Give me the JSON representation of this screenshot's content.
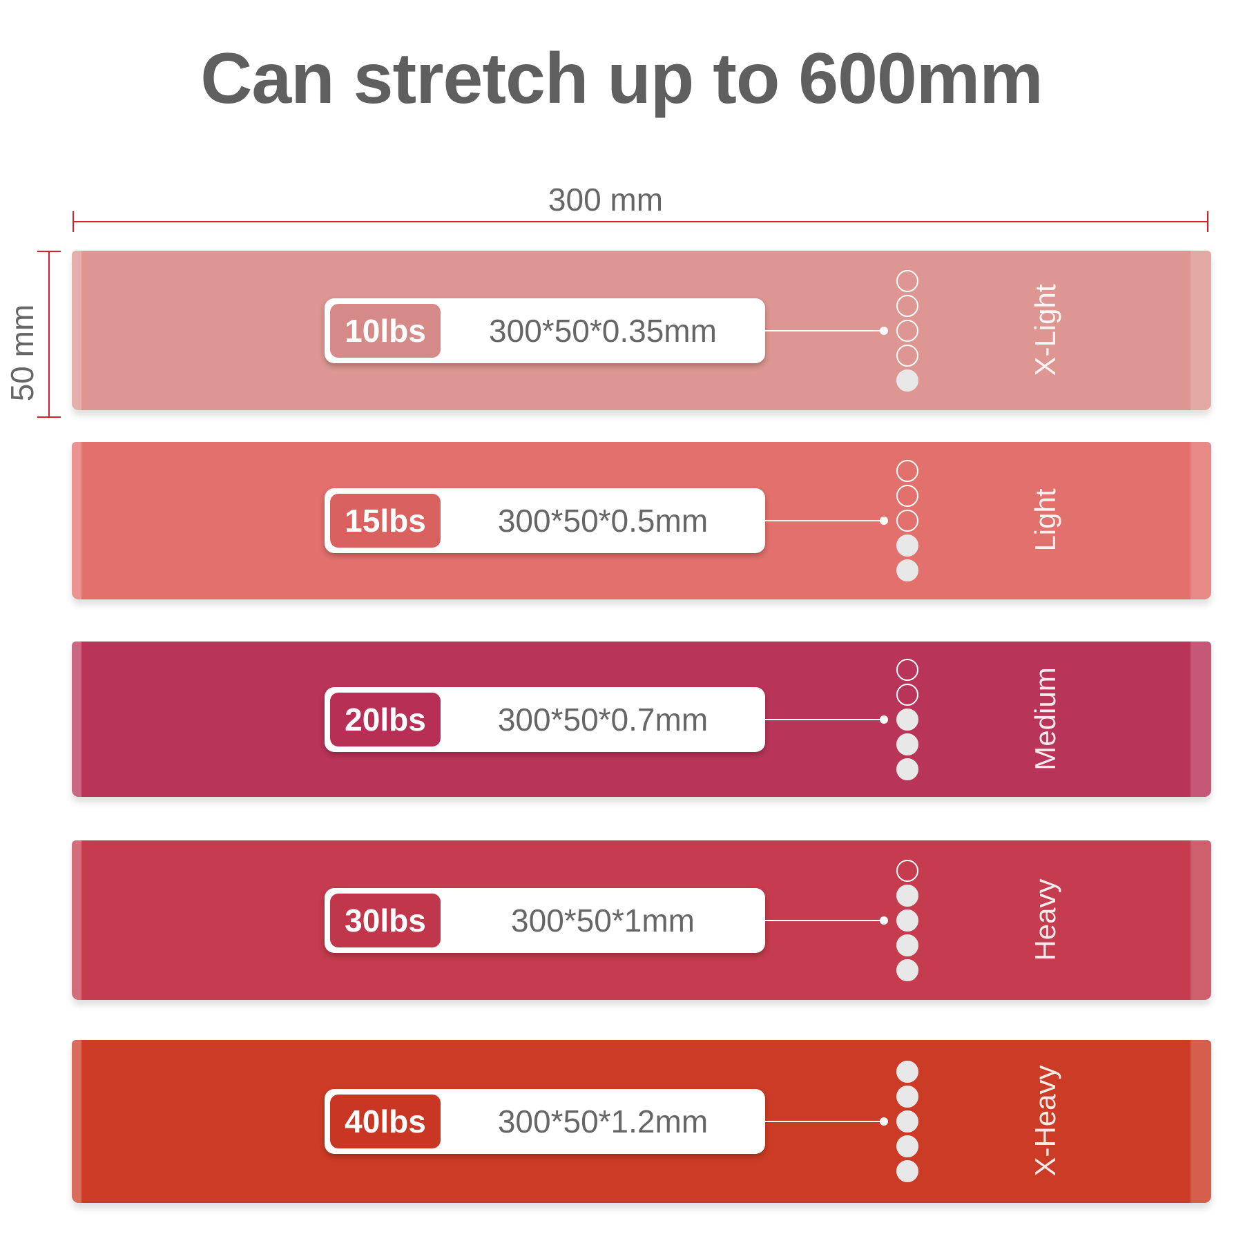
{
  "title": "Can stretch up to 600mm",
  "dimensions": {
    "width_label": "300 mm",
    "height_label": "50 mm",
    "ruler_color": "#d8202a"
  },
  "bands": [
    {
      "weight": "10lbs",
      "spec": "300*50*0.35mm",
      "level": "X-Light",
      "filled_dots": 1,
      "total_dots": 5,
      "color": "#dd9691",
      "badge_color": "#d58a87"
    },
    {
      "weight": "15lbs",
      "spec": "300*50*0.5mm",
      "level": "Light",
      "filled_dots": 2,
      "total_dots": 5,
      "color": "#e2706c",
      "badge_color": "#d9615f"
    },
    {
      "weight": "20lbs",
      "spec": "300*50*0.7mm",
      "level": "Medium",
      "filled_dots": 3,
      "total_dots": 5,
      "color": "#b93459",
      "badge_color": "#b82f55"
    },
    {
      "weight": "30lbs",
      "spec": "300*50*1mm",
      "level": "Heavy",
      "filled_dots": 4,
      "total_dots": 5,
      "color": "#c43c4d",
      "badge_color": "#c0364a"
    },
    {
      "weight": "40lbs",
      "spec": "300*50*1.2mm",
      "level": "X-Heavy",
      "filled_dots": 5,
      "total_dots": 5,
      "color": "#cc3b25",
      "badge_color": "#c93724"
    }
  ]
}
